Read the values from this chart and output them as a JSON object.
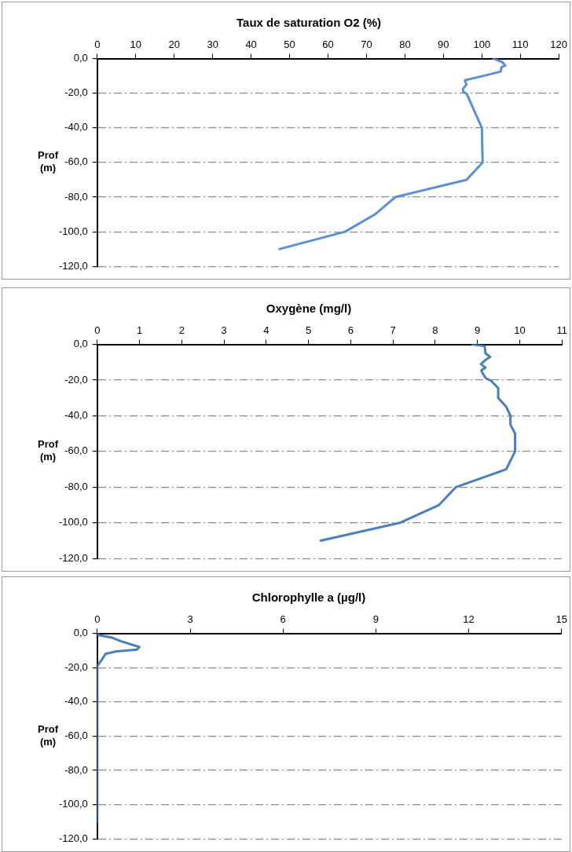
{
  "chart_data": [
    {
      "type": "line",
      "title": "Taux de saturation O2 (%)",
      "ylabel": "Prof (m)",
      "xlim": [
        0,
        120
      ],
      "xticks": [
        0,
        10,
        20,
        30,
        40,
        50,
        60,
        70,
        80,
        90,
        100,
        110,
        120
      ],
      "ylim": [
        -120,
        0
      ],
      "yticks": [
        {
          "value": 0,
          "label": "0,0"
        },
        {
          "value": -20,
          "label": "-20,0"
        },
        {
          "value": -40,
          "label": "-40,0"
        },
        {
          "value": -60,
          "label": "-60,0"
        },
        {
          "value": -80,
          "label": "-80,0"
        },
        {
          "value": -100,
          "label": "-100,0"
        },
        {
          "value": -120,
          "label": "-120,0"
        }
      ],
      "grid": "y",
      "legend": false,
      "marker": "none",
      "line_style": "solid",
      "series": [
        {
          "color": "#5b8fd6",
          "x": [
            103,
            105.3,
            106.1,
            105.1,
            104.9,
            100.4,
            95.6,
            96,
            95.1,
            95.1,
            96.1,
            100,
            100.2,
            96,
            77.5,
            72.2,
            64.4,
            47.4
          ],
          "values": [
            0,
            -2,
            -4,
            -5,
            -7.5,
            -10,
            -12.5,
            -15,
            -17.5,
            -19,
            -20.5,
            -40,
            -60,
            -70,
            -80,
            -90,
            -100,
            -110
          ]
        }
      ]
    },
    {
      "type": "line",
      "title": "Oxygène (mg/l)",
      "ylabel": "Prof (m)",
      "xlim": [
        0,
        11
      ],
      "xticks": [
        0,
        1,
        2,
        3,
        4,
        5,
        6,
        7,
        8,
        9,
        10,
        11
      ],
      "ylim": [
        -120,
        0
      ],
      "yticks": [
        {
          "value": 0,
          "label": "0,0"
        },
        {
          "value": -20,
          "label": "-20,0"
        },
        {
          "value": -40,
          "label": "-40,0"
        },
        {
          "value": -60,
          "label": "-60,0"
        },
        {
          "value": -80,
          "label": "-80,0"
        },
        {
          "value": -100,
          "label": "-100,0"
        },
        {
          "value": -120,
          "label": "-120,0"
        }
      ],
      "grid": "y",
      "legend": false,
      "marker": "none",
      "line_style": "solid",
      "series": [
        {
          "color": "#4a7ebf",
          "x": [
            8.88,
            9.17,
            9.19,
            9.3,
            9.2,
            9.08,
            9.19,
            9.09,
            9.13,
            9.2,
            9.33,
            9.49,
            9.49,
            9.68,
            9.78,
            9.78,
            9.89,
            9.89,
            9.68,
            8.49,
            8.09,
            7.16,
            5.29
          ],
          "values": [
            0,
            -1,
            -5,
            -7,
            -8.5,
            -11,
            -13,
            -14.5,
            -16.5,
            -19,
            -20.5,
            -24.5,
            -30,
            -35,
            -40,
            -45,
            -50,
            -60,
            -70,
            -80,
            -90,
            -100,
            -110
          ]
        }
      ]
    },
    {
      "type": "line",
      "title": "Chlorophylle a (µg/l)",
      "ylabel": "Prof (m)",
      "xlim": [
        0,
        15
      ],
      "xticks": [
        0,
        3,
        6,
        9,
        12,
        15
      ],
      "ylim": [
        -120,
        0
      ],
      "yticks": [
        {
          "value": 0,
          "label": "0,0"
        },
        {
          "value": -20,
          "label": "-20,0"
        },
        {
          "value": -40,
          "label": "-40,0"
        },
        {
          "value": -60,
          "label": "-60,0"
        },
        {
          "value": -80,
          "label": "-80,0"
        },
        {
          "value": -100,
          "label": "-100,0"
        },
        {
          "value": -120,
          "label": "-120,0"
        }
      ],
      "grid": "y",
      "legend": false,
      "marker": "none",
      "line_style": "solid",
      "series": [
        {
          "color": "#4a7ebf",
          "x": [
            0,
            0.04,
            0.48,
            0.75,
            1.36,
            1.28,
            0.62,
            0.26,
            0.18,
            0,
            0,
            0,
            0,
            0,
            0,
            0
          ],
          "values": [
            0,
            -1,
            -2.5,
            -4.5,
            -8,
            -9.5,
            -10.5,
            -12,
            -14.5,
            -19,
            -20,
            -40,
            -60,
            -80,
            -100,
            -110
          ]
        }
      ]
    }
  ]
}
